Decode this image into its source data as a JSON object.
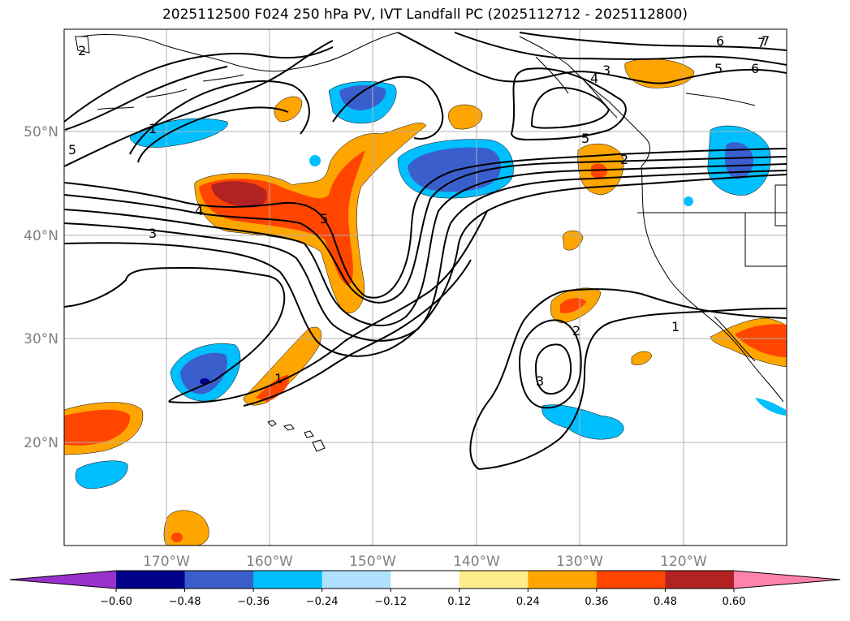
{
  "title": "2025112500 F024 250 hPa PV, IVT Landfall PC (2025112712 - 2025112800)",
  "map": {
    "lat_labels": [
      "50°N",
      "40°N",
      "30°N",
      "20°N"
    ],
    "lon_labels": [
      "170°W",
      "160°W",
      "150°W",
      "140°W",
      "130°W",
      "120°W"
    ],
    "contour_labels": [
      "1",
      "2",
      "3",
      "4",
      "5",
      "6",
      "7",
      "1",
      "2",
      "3",
      "3",
      "4",
      "5",
      "6",
      "7",
      "5",
      "5",
      "2",
      "1"
    ]
  },
  "colorbar": {
    "ticks": [
      "−0.60",
      "−0.48",
      "−0.36",
      "−0.24",
      "−0.12",
      "0.12",
      "0.24",
      "0.36",
      "0.48",
      "0.60"
    ],
    "colors": [
      "#9932cc",
      "#00008b",
      "#3a5fcd",
      "#00bfff",
      "#b0e2ff",
      "#ffffff",
      "#ffec8b",
      "#ffa500",
      "#ff4500",
      "#b22222",
      "#ff82ab"
    ]
  }
}
